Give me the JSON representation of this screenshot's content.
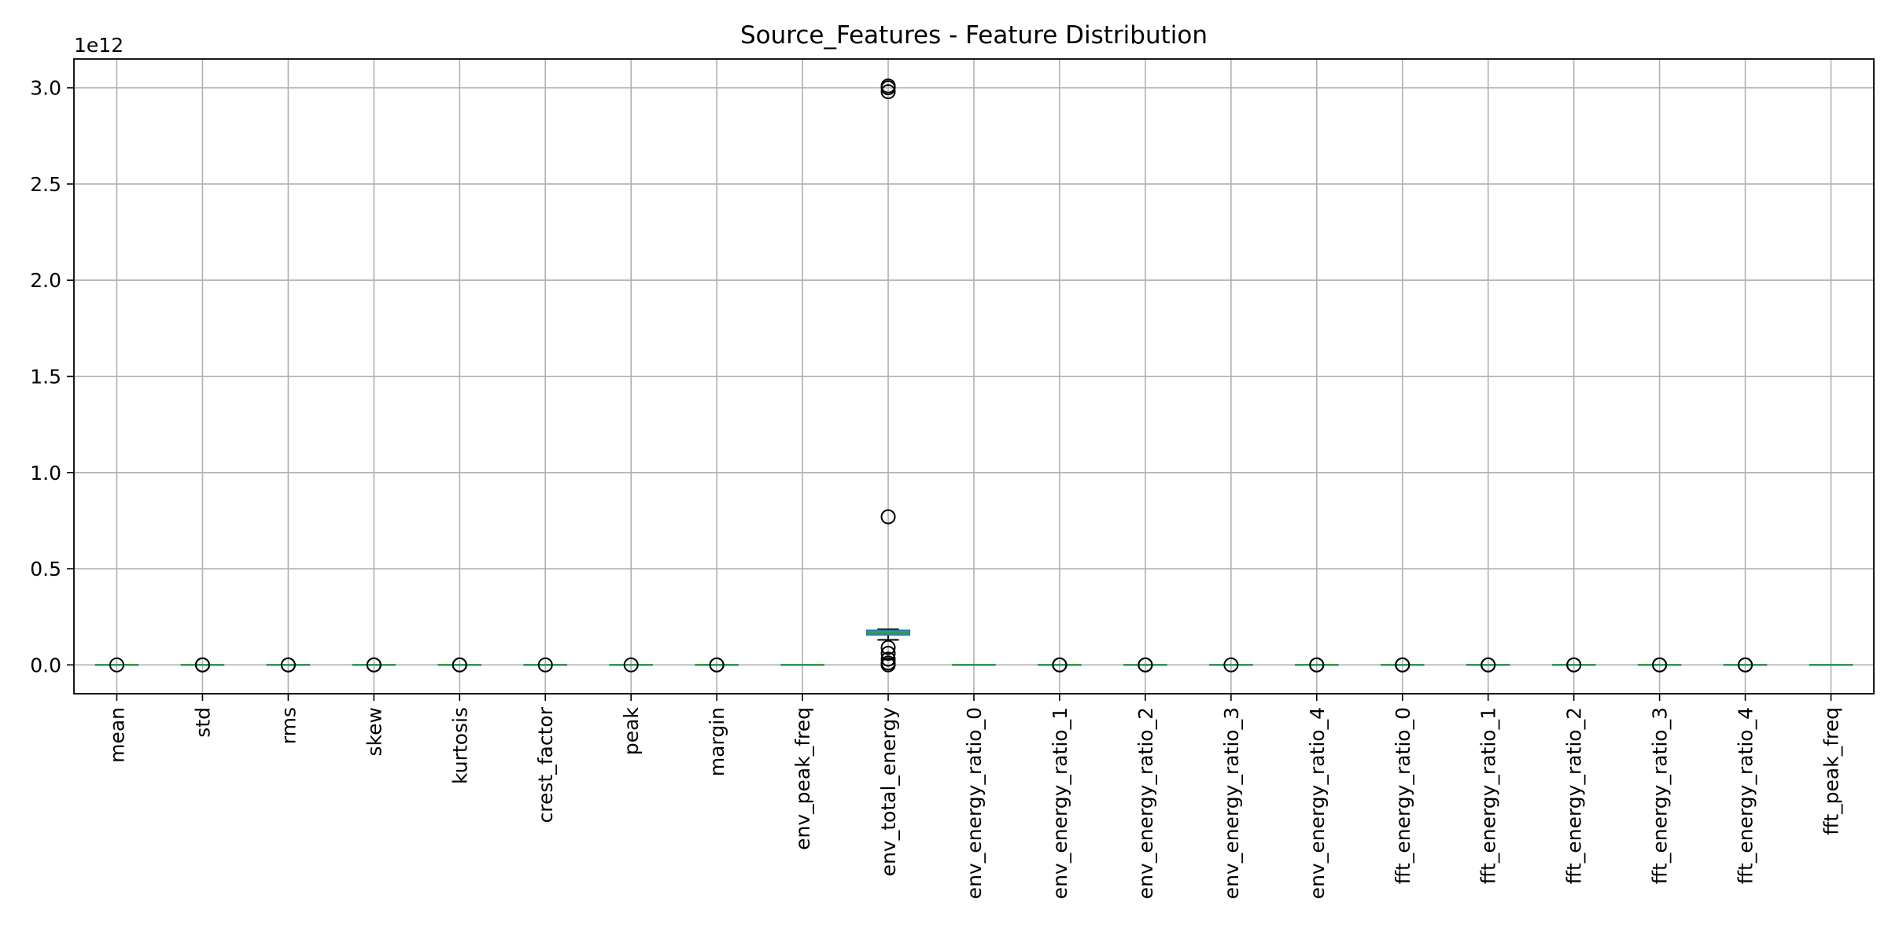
{
  "chart_data": {
    "type": "box",
    "title": "Source_Features - Feature Distribution",
    "offset_label": "1e12",
    "xlabel": "",
    "ylabel": "",
    "ylim": [
      -0.15,
      3.15
    ],
    "yticks": [
      0.0,
      0.5,
      1.0,
      1.5,
      2.0,
      2.5,
      3.0
    ],
    "ytick_labels": [
      "0.0",
      "0.5",
      "1.0",
      "1.5",
      "2.0",
      "2.5",
      "3.0"
    ],
    "grid": true,
    "categories": [
      "mean",
      "std",
      "rms",
      "skew",
      "kurtosis",
      "crest_factor",
      "peak",
      "margin",
      "env_peak_freq",
      "env_total_energy",
      "env_energy_ratio_0",
      "env_energy_ratio_1",
      "env_energy_ratio_2",
      "env_energy_ratio_3",
      "env_energy_ratio_4",
      "fft_energy_ratio_0",
      "fft_energy_ratio_1",
      "fft_energy_ratio_2",
      "fft_energy_ratio_3",
      "fft_energy_ratio_4",
      "fft_peak_freq"
    ],
    "boxes": [
      {
        "whisker_low": 0,
        "q1": 0,
        "median": 0,
        "q3": 0,
        "whisker_high": 0,
        "outliers": [
          0.0
        ]
      },
      {
        "whisker_low": 0,
        "q1": 0,
        "median": 0,
        "q3": 0,
        "whisker_high": 0,
        "outliers": [
          0.0,
          0.0
        ]
      },
      {
        "whisker_low": 0,
        "q1": 0,
        "median": 0,
        "q3": 0,
        "whisker_high": 0,
        "outliers": [
          0.0,
          0.0
        ]
      },
      {
        "whisker_low": 0,
        "q1": 0,
        "median": 0,
        "q3": 0,
        "whisker_high": 0,
        "outliers": [
          0.0,
          0.0
        ]
      },
      {
        "whisker_low": 0,
        "q1": 0,
        "median": 0,
        "q3": 0,
        "whisker_high": 0,
        "outliers": [
          0.0,
          0.0
        ]
      },
      {
        "whisker_low": 0,
        "q1": 0,
        "median": 0,
        "q3": 0,
        "whisker_high": 0,
        "outliers": [
          0.0
        ]
      },
      {
        "whisker_low": 0,
        "q1": 0,
        "median": 0,
        "q3": 0,
        "whisker_high": 0,
        "outliers": [
          0.0
        ]
      },
      {
        "whisker_low": 0,
        "q1": 0,
        "median": 0,
        "q3": 0,
        "whisker_high": 0,
        "outliers": [
          0.0,
          0.0
        ]
      },
      {
        "whisker_low": 0,
        "q1": 0,
        "median": 0,
        "q3": 0,
        "whisker_high": 0,
        "outliers": []
      },
      {
        "whisker_low": 0.13,
        "q1": 0.155,
        "median": 0.165,
        "q3": 0.18,
        "whisker_high": 0.185,
        "outliers": [
          3.01,
          3.0,
          2.98,
          0.77,
          0.09,
          0.06,
          0.03,
          0.01,
          0.0
        ]
      },
      {
        "whisker_low": 0,
        "q1": 0,
        "median": 0,
        "q3": 0,
        "whisker_high": 0,
        "outliers": []
      },
      {
        "whisker_low": 0,
        "q1": 0,
        "median": 0,
        "q3": 0,
        "whisker_high": 0,
        "outliers": [
          0.0,
          0.0
        ]
      },
      {
        "whisker_low": 0,
        "q1": 0,
        "median": 0,
        "q3": 0,
        "whisker_high": 0,
        "outliers": [
          0.0,
          0.0
        ]
      },
      {
        "whisker_low": 0,
        "q1": 0,
        "median": 0,
        "q3": 0,
        "whisker_high": 0,
        "outliers": [
          0.0
        ]
      },
      {
        "whisker_low": 0,
        "q1": 0,
        "median": 0,
        "q3": 0,
        "whisker_high": 0,
        "outliers": [
          0.0,
          0.0
        ]
      },
      {
        "whisker_low": 0,
        "q1": 0,
        "median": 0,
        "q3": 0,
        "whisker_high": 0,
        "outliers": [
          0.0,
          0.0
        ]
      },
      {
        "whisker_low": 0,
        "q1": 0,
        "median": 0,
        "q3": 0,
        "whisker_high": 0,
        "outliers": [
          0.0,
          0.0
        ]
      },
      {
        "whisker_low": 0,
        "q1": 0,
        "median": 0,
        "q3": 0,
        "whisker_high": 0,
        "outliers": [
          0.0,
          0.0
        ]
      },
      {
        "whisker_low": 0,
        "q1": 0,
        "median": 0,
        "q3": 0,
        "whisker_high": 0,
        "outliers": [
          0.0,
          0.0
        ]
      },
      {
        "whisker_low": 0,
        "q1": 0,
        "median": 0,
        "q3": 0,
        "whisker_high": 0,
        "outliers": [
          0.0,
          0.0
        ]
      },
      {
        "whisker_low": 0,
        "q1": 0,
        "median": 0,
        "q3": 0,
        "whisker_high": 0,
        "outliers": []
      }
    ],
    "colors": {
      "box": "#1f77b4",
      "box_fill": "#3a8fa0",
      "median": "#2ca02c",
      "whisker": "#000000",
      "grid": "#b0b0b0",
      "axes": "#000000"
    }
  }
}
